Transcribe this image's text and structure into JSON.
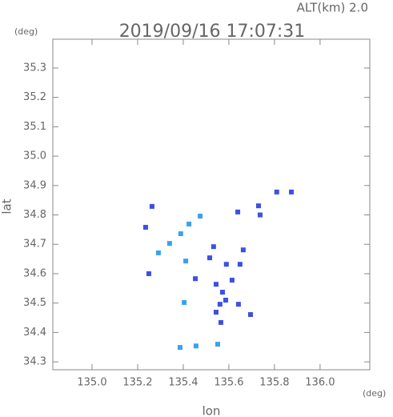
{
  "chart_data": {
    "type": "scatter",
    "title": "2019/09/16 17:07:31",
    "subtitle": "ALT(km) 2.0",
    "x_label": "lon",
    "y_label": "lat",
    "x_unit": "(deg)",
    "y_unit": "(deg)",
    "xlim": [
      134.828,
      136.218
    ],
    "ylim": [
      34.273,
      35.398
    ],
    "xticks": [
      {
        "value": 135.0,
        "label": "135.0"
      },
      135.2,
      135.4,
      135.6,
      135.8,
      {
        "value": 136.0,
        "label": "136.0"
      }
    ],
    "yticks": [
      34.3,
      34.4,
      34.5,
      34.6,
      34.7,
      34.8,
      34.9,
      {
        "value": 35.0,
        "label": "35.0"
      },
      35.1,
      35.2,
      35.3
    ],
    "grid": false,
    "x": [
      135.81,
      135.874,
      135.73,
      135.639,
      135.737,
      135.235,
      135.263,
      135.291,
      135.34,
      135.389,
      135.425,
      135.474,
      135.249,
      135.411,
      135.516,
      135.533,
      135.589,
      135.663,
      135.649,
      135.453,
      135.544,
      135.572,
      135.614,
      135.561,
      135.544,
      135.586,
      135.642,
      135.695,
      135.565,
      135.404,
      135.386,
      135.456,
      135.551
    ],
    "y": [
      34.878,
      34.878,
      34.831,
      34.81,
      34.8,
      34.758,
      34.829,
      34.671,
      34.703,
      34.736,
      34.769,
      34.796,
      34.6,
      34.643,
      34.654,
      34.692,
      34.632,
      34.681,
      34.632,
      34.583,
      34.564,
      34.537,
      34.578,
      34.496,
      34.469,
      34.51,
      34.496,
      34.461,
      34.434,
      34.502,
      34.349,
      34.354,
      34.36
    ],
    "colors": [
      "#3b50e6",
      "#3b50e6",
      "#3b50e6",
      "#3b50e6",
      "#3b50e6",
      "#3b50e6",
      "#3b50e6",
      "#3aa2ea",
      "#3aa2ea",
      "#3aa2ea",
      "#3aa2ea",
      "#3aa2ea",
      "#3b50e6",
      "#3aa2ea",
      "#3b50e6",
      "#3b50e6",
      "#3b50e6",
      "#3b50e6",
      "#3b50e6",
      "#3b50e6",
      "#3b50e6",
      "#3b50e6",
      "#3b50e6",
      "#3b50e6",
      "#3b50e6",
      "#3b50e6",
      "#3b50e6",
      "#3b50e6",
      "#3b50e6",
      "#3aa2ea",
      "#3aa2ea",
      "#3aa2ea",
      "#3aa2ea"
    ]
  }
}
